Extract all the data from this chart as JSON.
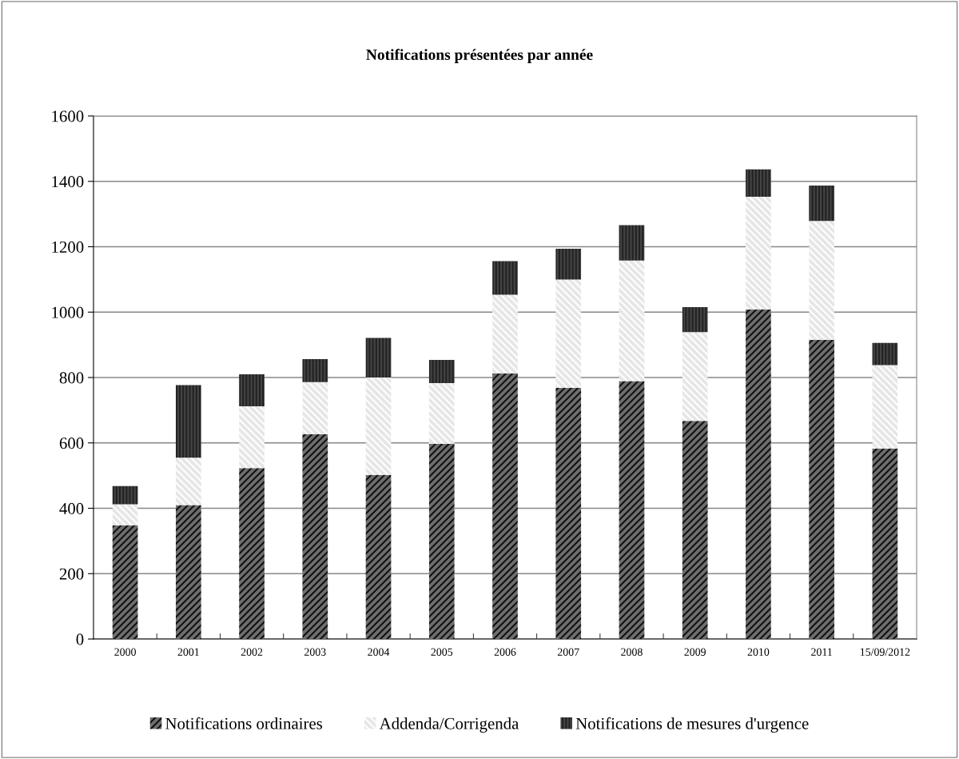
{
  "chart_data": {
    "type": "bar",
    "title": "Notifications présentées par année",
    "stacked": true,
    "categories": [
      "2000",
      "2001",
      "2002",
      "2003",
      "2004",
      "2005",
      "2006",
      "2007",
      "2008",
      "2009",
      "2010",
      "2011",
      "15/09/2012"
    ],
    "series": [
      {
        "name": "Notifications ordinaires",
        "color": "#6e6e6e",
        "values": [
          348,
          410,
          523,
          626,
          502,
          597,
          812,
          768,
          789,
          667,
          1008,
          915,
          583
        ]
      },
      {
        "name": "Addenda/Corrigenda",
        "color": "#e6e6e6",
        "values": [
          64,
          145,
          189,
          160,
          298,
          186,
          241,
          332,
          369,
          272,
          345,
          364,
          255
        ]
      },
      {
        "name": "Notifications de mesures d'urgence",
        "color": "#222222",
        "values": [
          56,
          222,
          98,
          70,
          121,
          71,
          103,
          94,
          108,
          76,
          84,
          108,
          68
        ]
      }
    ],
    "ylim": [
      0,
      1600
    ],
    "yticks": [
      0,
      200,
      400,
      600,
      800,
      1000,
      1200,
      1400,
      1600
    ],
    "grid": "y",
    "legend": "bottom"
  }
}
